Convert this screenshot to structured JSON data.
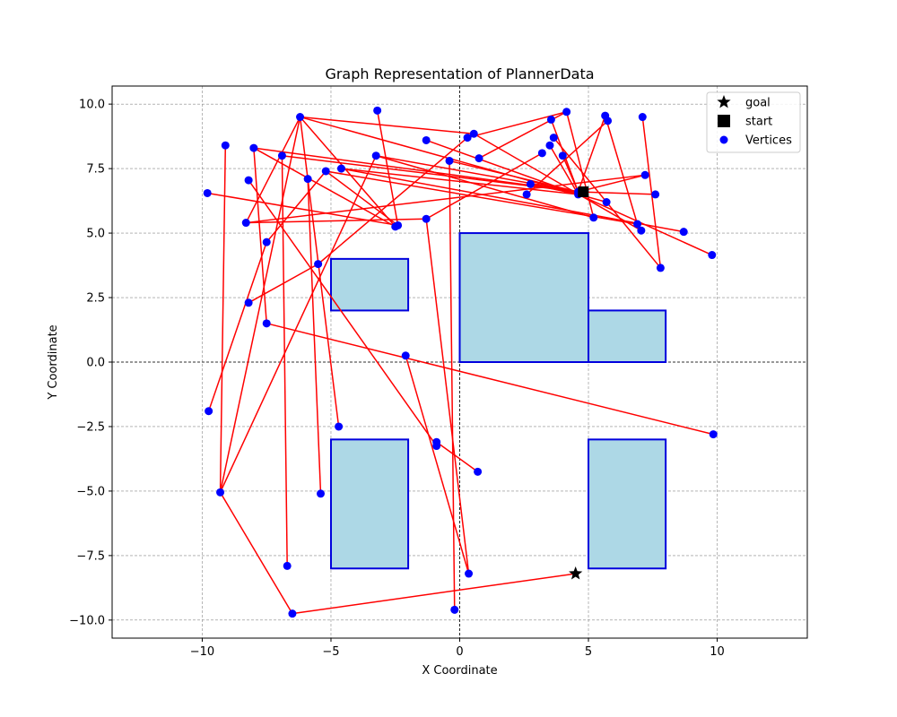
{
  "chart_data": {
    "type": "scatter",
    "title": "Graph Representation of PlannerData",
    "xlabel": "X Coordinate",
    "ylabel": "Y Coordinate",
    "xlim": [
      -13.5,
      13.5
    ],
    "ylim": [
      -10.7,
      10.7
    ],
    "xticks": [
      -10,
      -5,
      0,
      5,
      10
    ],
    "xtick_labels": [
      "−10",
      "−5",
      "0",
      "5",
      "10"
    ],
    "yticks": [
      -10,
      -7.5,
      -5,
      -2.5,
      0,
      2.5,
      5,
      7.5,
      10
    ],
    "ytick_labels": [
      "−10.0",
      "−7.5",
      "−5.0",
      "−2.5",
      "0.0",
      "2.5",
      "5.0",
      "7.5",
      "10.0"
    ],
    "grid": true,
    "legend_position": "top-right",
    "legend": [
      {
        "label": "goal",
        "marker": "star",
        "color": "#000000"
      },
      {
        "label": "start",
        "marker": "square",
        "color": "#000000"
      },
      {
        "label": "Vertices",
        "marker": "circle",
        "color": "#0000ff"
      }
    ],
    "colors": {
      "vertex": "#0000ff",
      "edge": "#ff0000",
      "obstacle_fill": "#add8e6",
      "obstacle_edge": "#0000dd"
    },
    "start": [
      4.8,
      6.6
    ],
    "goal": [
      4.5,
      -8.2
    ],
    "obstacles": [
      {
        "x": -5,
        "y": 2,
        "w": 3,
        "h": 2
      },
      {
        "x": 0,
        "y": 0,
        "w": 5,
        "h": 5
      },
      {
        "x": 5,
        "y": 0,
        "w": 3,
        "h": 2
      },
      {
        "x": -5,
        "y": -8,
        "w": 3,
        "h": 5
      },
      {
        "x": 5,
        "y": -8,
        "w": 3,
        "h": 5
      }
    ],
    "vertices": [
      [
        -9.8,
        6.55
      ],
      [
        -9.1,
        8.4
      ],
      [
        -8.3,
        5.4
      ],
      [
        -8.2,
        7.05
      ],
      [
        -8.0,
        8.3
      ],
      [
        -7.5,
        4.65
      ],
      [
        -7.5,
        1.5
      ],
      [
        -8.2,
        2.3
      ],
      [
        -9.75,
        -1.9
      ],
      [
        -9.3,
        -5.05
      ],
      [
        -6.9,
        8.0
      ],
      [
        -6.2,
        9.5
      ],
      [
        -5.9,
        7.1
      ],
      [
        -5.5,
        3.8
      ],
      [
        -5.2,
        7.4
      ],
      [
        -4.6,
        7.5
      ],
      [
        -4.7,
        -2.5
      ],
      [
        -5.4,
        -5.1
      ],
      [
        -6.7,
        -7.9
      ],
      [
        -6.5,
        -9.75
      ],
      [
        -3.2,
        9.75
      ],
      [
        -3.25,
        8.0
      ],
      [
        -2.5,
        5.25
      ],
      [
        -2.4,
        5.3
      ],
      [
        -2.1,
        0.25
      ],
      [
        -1.3,
        5.55
      ],
      [
        -1.3,
        8.6
      ],
      [
        -0.9,
        -3.1
      ],
      [
        -0.9,
        -3.25
      ],
      [
        -0.4,
        7.8
      ],
      [
        -0.2,
        -9.6
      ],
      [
        0.3,
        8.7
      ],
      [
        0.55,
        8.85
      ],
      [
        0.7,
        -4.25
      ],
      [
        0.35,
        -8.2
      ],
      [
        0.75,
        7.9
      ],
      [
        2.6,
        6.5
      ],
      [
        2.75,
        6.9
      ],
      [
        3.2,
        8.1
      ],
      [
        3.5,
        8.4
      ],
      [
        3.55,
        9.4
      ],
      [
        3.65,
        8.7
      ],
      [
        4.0,
        8.0
      ],
      [
        4.15,
        9.7
      ],
      [
        4.6,
        6.6
      ],
      [
        5.2,
        5.6
      ],
      [
        5.65,
        9.55
      ],
      [
        5.75,
        9.35
      ],
      [
        5.7,
        6.2
      ],
      [
        6.9,
        5.35
      ],
      [
        7.05,
        5.1
      ],
      [
        7.1,
        9.5
      ],
      [
        7.2,
        7.25
      ],
      [
        7.6,
        6.5
      ],
      [
        7.8,
        3.65
      ],
      [
        8.7,
        5.05
      ],
      [
        9.8,
        4.15
      ],
      [
        9.85,
        -2.8
      ],
      [
        4.6,
        6.5
      ]
    ],
    "edges": [
      [
        -9.8,
        6.55,
        -2.4,
        5.3
      ],
      [
        -9.1,
        8.4,
        -9.3,
        -5.05
      ],
      [
        -8.3,
        5.4,
        7.2,
        7.25
      ],
      [
        -8.3,
        5.4,
        -6.2,
        9.5
      ],
      [
        -8.2,
        7.05,
        -0.9,
        -3.25
      ],
      [
        -8.0,
        8.3,
        4.6,
        6.6
      ],
      [
        -8.0,
        8.3,
        -7.5,
        1.5
      ],
      [
        -7.5,
        4.65,
        -5.2,
        7.4
      ],
      [
        -7.5,
        1.5,
        9.85,
        -2.8
      ],
      [
        -8.2,
        2.3,
        -5.5,
        3.8
      ],
      [
        -9.75,
        -1.9,
        -7.5,
        4.65
      ],
      [
        -9.3,
        -5.05,
        -6.2,
        9.5
      ],
      [
        -9.3,
        -5.05,
        -6.5,
        -9.75
      ],
      [
        -6.9,
        8.0,
        -6.7,
        -7.9
      ],
      [
        -6.9,
        8.0,
        4.6,
        6.6
      ],
      [
        -6.2,
        9.5,
        0.55,
        8.85
      ],
      [
        -6.2,
        9.5,
        -2.5,
        5.25
      ],
      [
        -6.2,
        9.5,
        -4.7,
        -2.5
      ],
      [
        -6.2,
        9.5,
        5.7,
        6.2
      ],
      [
        -5.9,
        7.1,
        -5.4,
        -5.1
      ],
      [
        -5.5,
        3.8,
        0.3,
        8.7
      ],
      [
        -5.2,
        7.4,
        6.9,
        5.35
      ],
      [
        -4.6,
        7.5,
        4.6,
        6.5
      ],
      [
        -4.6,
        7.5,
        8.7,
        5.05
      ],
      [
        -6.5,
        -9.75,
        4.5,
        -8.2
      ],
      [
        -3.2,
        9.75,
        -2.4,
        5.3
      ],
      [
        -3.25,
        8.0,
        4.6,
        6.6
      ],
      [
        -3.25,
        8.0,
        -9.3,
        -5.05
      ],
      [
        -3.25,
        8.0,
        5.2,
        5.6
      ],
      [
        -2.1,
        0.25,
        0.35,
        -8.2
      ],
      [
        -1.3,
        5.55,
        -8.3,
        5.4
      ],
      [
        -1.3,
        5.55,
        0.35,
        -8.2
      ],
      [
        -1.3,
        5.55,
        3.2,
        8.1
      ],
      [
        -1.3,
        8.6,
        4.6,
        6.5
      ],
      [
        -0.9,
        -3.1,
        0.7,
        -4.25
      ],
      [
        -0.4,
        7.8,
        -0.2,
        -9.6
      ],
      [
        -0.4,
        7.8,
        4.6,
        6.6
      ],
      [
        0.3,
        8.7,
        4.15,
        9.7
      ],
      [
        0.75,
        7.9,
        4.15,
        9.7
      ],
      [
        0.55,
        8.85,
        7.05,
        5.1
      ],
      [
        2.6,
        6.5,
        5.75,
        9.35
      ],
      [
        2.75,
        6.9,
        4.6,
        6.5
      ],
      [
        3.65,
        8.7,
        7.8,
        3.65
      ],
      [
        4.15,
        9.7,
        5.2,
        5.6
      ],
      [
        4.0,
        8.0,
        4.6,
        6.6
      ],
      [
        3.55,
        9.4,
        4.6,
        6.6
      ],
      [
        5.65,
        9.55,
        6.9,
        5.35
      ],
      [
        5.65,
        9.55,
        4.6,
        6.6
      ],
      [
        7.1,
        9.5,
        7.8,
        3.65
      ],
      [
        7.2,
        7.25,
        4.6,
        6.6
      ],
      [
        7.6,
        6.5,
        4.6,
        6.6
      ],
      [
        9.8,
        4.15,
        4.6,
        6.5
      ],
      [
        -2.4,
        5.3,
        -5.2,
        7.4
      ],
      [
        -2.5,
        5.25,
        -8.0,
        8.3
      ],
      [
        3.5,
        8.4,
        4.6,
        6.5
      ]
    ]
  }
}
